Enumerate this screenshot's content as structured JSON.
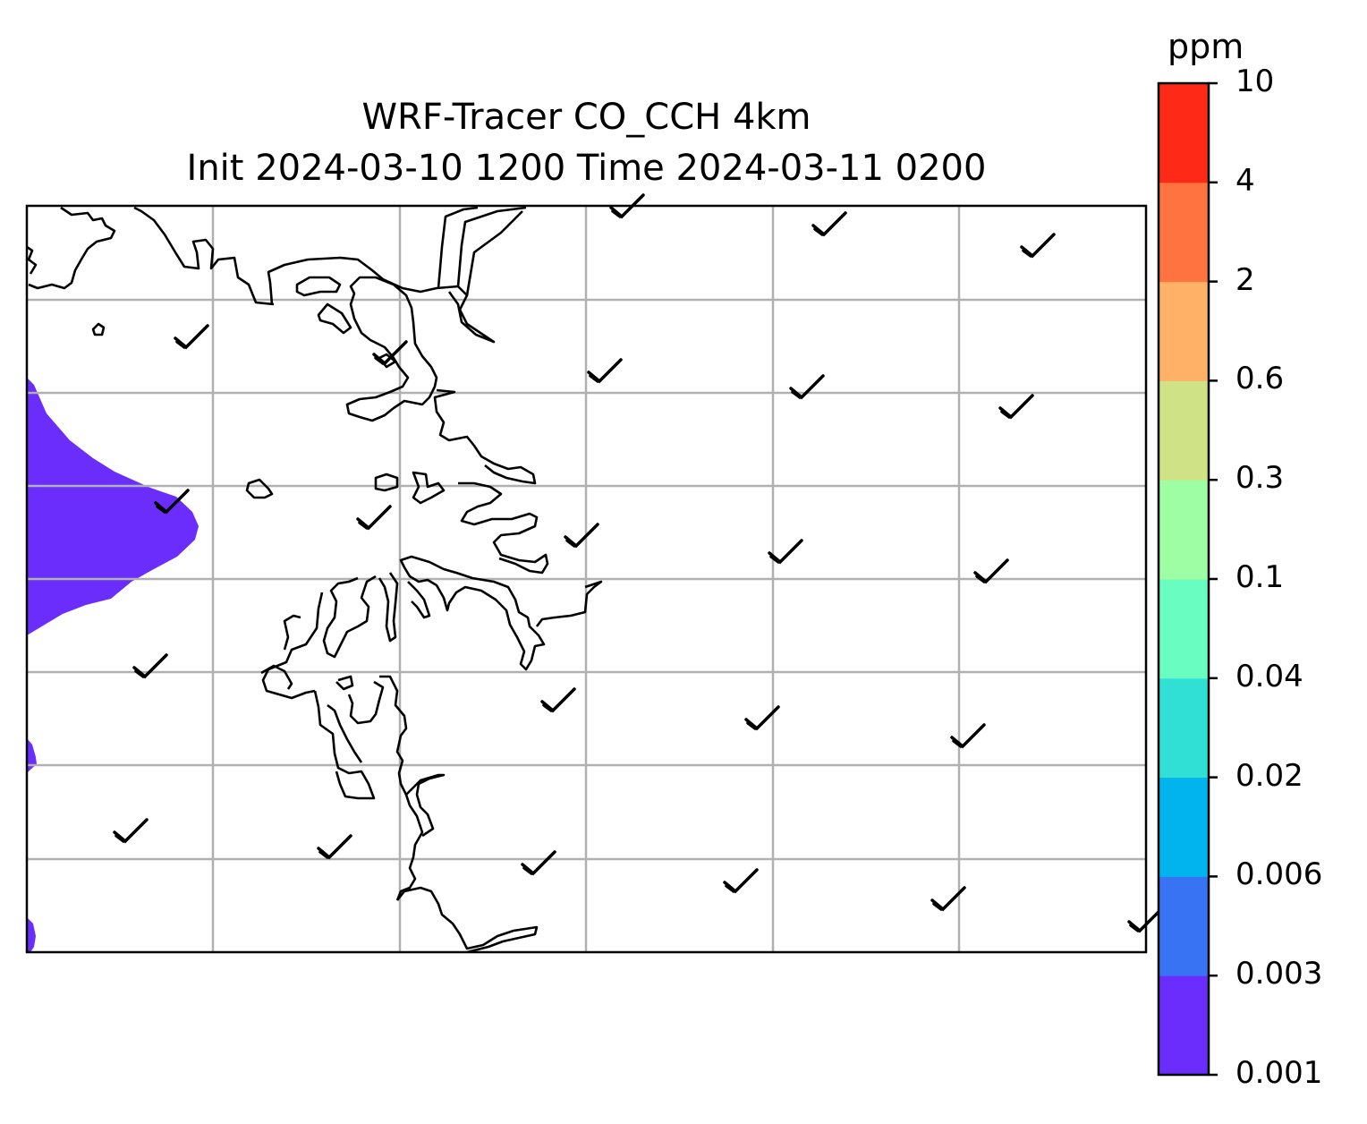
{
  "title": {
    "line1": "WRF-Tracer CO_CCH 4km",
    "line2": "Init 2024-03-10 1200 Time 2024-03-11 0200"
  },
  "colorbar": {
    "unit": "ppm",
    "ticks": [
      "0.001",
      "0.003",
      "0.006",
      "0.02",
      "0.04",
      "0.1",
      "0.3",
      "0.6",
      "2",
      "4",
      "10"
    ],
    "colors": [
      "#6a2dfb",
      "#3873f4",
      "#02b4ed",
      "#31e0d5",
      "#6afdc1",
      "#9dfea4",
      "#cfe286",
      "#feb167",
      "#fe7340",
      "#fe2a17"
    ]
  },
  "map": {
    "gridlines": true,
    "concentration_fill_color": "#6a2dfb",
    "wind_barbs_present": true
  }
}
